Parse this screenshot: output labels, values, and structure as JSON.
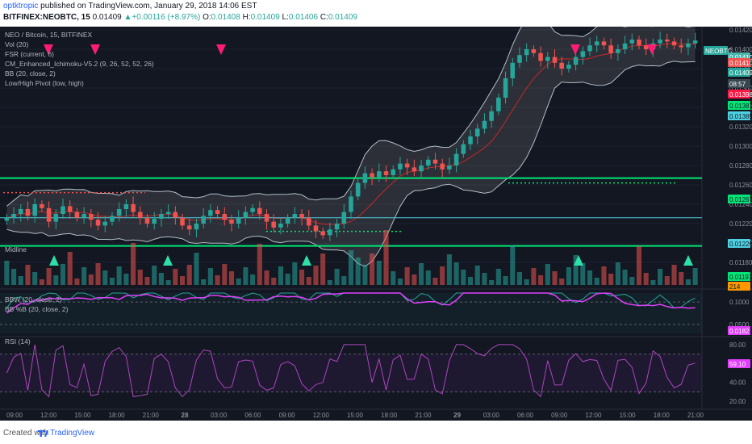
{
  "header": {
    "author": "optktropic",
    "published": " published on TradingView.com, January 29, 2018 14:06 EST",
    "symbol": "BITFINEX:NEOBTC, 15",
    "last": "0.01409",
    "change": "+0.00116 (+8.97%)",
    "open_label": "O:",
    "open": "0.01408",
    "high_label": "H:",
    "high": "0.01409",
    "low_label": "L:",
    "low": "0.01406",
    "close_label": "C:",
    "close": "0.01409"
  },
  "legend": {
    "main": [
      "NEO / Bitcoin, 15, BITFINEX",
      "Vol (20)",
      "FSR (current, 6)",
      "CM_Enhanced_Ichimoku-V5.2 (9, 26, 52, 52, 26)",
      "BB (20, close, 2)",
      "Low/High Pivot (low, high)"
    ],
    "midline": "Midline",
    "bbw": "BBW (20, close, 2)",
    "bbpct": "BB %B (20, close, 2)",
    "rsi": "RSI (14)"
  },
  "axes": {
    "price_ticks": [
      "0.01420",
      "0.01400",
      "0.01380",
      "0.01360",
      "0.01340",
      "0.01320",
      "0.01300",
      "0.01280",
      "0.01260",
      "0.01240",
      "0.01220",
      "0.01200",
      "0.01180"
    ],
    "bbw_ticks": [
      "0.1000",
      "0.0500"
    ],
    "rsi_ticks": [
      "80.00",
      "40.00",
      "20.00"
    ],
    "time_labels": [
      "09:00",
      "12:00",
      "15:00",
      "18:00",
      "21:00",
      "28",
      "03:00",
      "06:00",
      "09:00",
      "12:00",
      "15:00",
      "18:00",
      "21:00",
      "29",
      "03:00",
      "06:00",
      "09:00",
      "12:00",
      "15:00",
      "18:00",
      "21:00"
    ]
  },
  "price_tags": [
    {
      "text": "NEOBTC",
      "bg": "#26a69a",
      "fg": "#ffffff"
    },
    {
      "text": "0.01410",
      "bg": "#4db6ac",
      "fg": "#ffffff"
    },
    {
      "text": "0.01410",
      "bg": "#ef5350",
      "fg": "#ffffff"
    },
    {
      "text": "0.01409",
      "bg": "#26a69a",
      "fg": "#ffffff"
    },
    {
      "text": "08:57",
      "bg": "#37474f",
      "fg": "#ffffff"
    },
    {
      "text": "0.01398",
      "bg": "#ff1744",
      "fg": "#ffffff"
    },
    {
      "text": "0.01387",
      "bg": "#00e676",
      "fg": "#131722"
    },
    {
      "text": "0.01385",
      "bg": "#4dd0e1",
      "fg": "#131722"
    },
    {
      "text": "0.01267",
      "bg": "#00e676",
      "fg": "#131722"
    },
    {
      "text": "0.01226",
      "bg": "#4dd0e1",
      "fg": "#131722"
    },
    {
      "text": "0.01197",
      "bg": "#00e676",
      "fg": "#131722"
    },
    {
      "text": "214",
      "bg": "#ff9800",
      "fg": "#131722"
    },
    {
      "text": "0.0182",
      "bg": "#e040fb",
      "fg": "#ffffff"
    },
    {
      "text": "59.10",
      "bg": "#e040fb",
      "fg": "#ffffff"
    }
  ],
  "footer": {
    "created": "Created with",
    "brand": "TradingView"
  },
  "colors": {
    "bg": "#131722",
    "up": "#26a69a",
    "down": "#ef5350",
    "bb_fill": "#9e9e9e",
    "support": "#00e676",
    "resistance": "#4dd0e1",
    "bbw": "#26a69a",
    "bbpct": "#e040fb",
    "rsi": "#ab47bc"
  },
  "chart_data": {
    "type": "candlestick",
    "symbol": "NEOBTC",
    "interval": "15",
    "price_range": [
      0.0118,
      0.0142
    ],
    "key_levels": [
      0.01267,
      0.01226,
      0.01197
    ],
    "close_series": [
      0.01226,
      0.0123,
      0.01235,
      0.01228,
      0.0124,
      0.01236,
      0.01222,
      0.0123,
      0.01238,
      0.01232,
      0.01226,
      0.0123,
      0.01224,
      0.01218,
      0.01222,
      0.01228,
      0.01235,
      0.0124,
      0.01232,
      0.01226,
      0.0122,
      0.01225,
      0.0123,
      0.01232,
      0.01226,
      0.01218,
      0.01214,
      0.0122,
      0.01228,
      0.01234,
      0.0123,
      0.01224,
      0.0122,
      0.01226,
      0.01232,
      0.01236,
      0.0123,
      0.01222,
      0.01216,
      0.0122,
      0.01226,
      0.0123,
      0.01226,
      0.01218,
      0.01212,
      0.01208,
      0.01214,
      0.0122,
      0.01232,
      0.01248,
      0.01262,
      0.01272,
      0.01268,
      0.01274,
      0.0127,
      0.01276,
      0.01282,
      0.01278,
      0.01274,
      0.0128,
      0.01286,
      0.01282,
      0.01276,
      0.0128,
      0.01292,
      0.01302,
      0.0131,
      0.01318,
      0.01326,
      0.01336,
      0.0135,
      0.0137,
      0.01386,
      0.01394,
      0.014,
      0.01396,
      0.01388,
      0.01392,
      0.01386,
      0.0138,
      0.01384,
      0.01392,
      0.01398,
      0.01404,
      0.01408,
      0.01404,
      0.01396,
      0.014,
      0.01406,
      0.0141,
      0.01404,
      0.014,
      0.01406,
      0.0141,
      0.01408,
      0.01404,
      0.01402,
      0.01406,
      0.01409
    ],
    "bbw_range": [
      0.03,
      0.12
    ],
    "rsi_range": [
      15,
      85
    ],
    "rsi_last": 59.1,
    "bbpct_last": 0.0182
  }
}
